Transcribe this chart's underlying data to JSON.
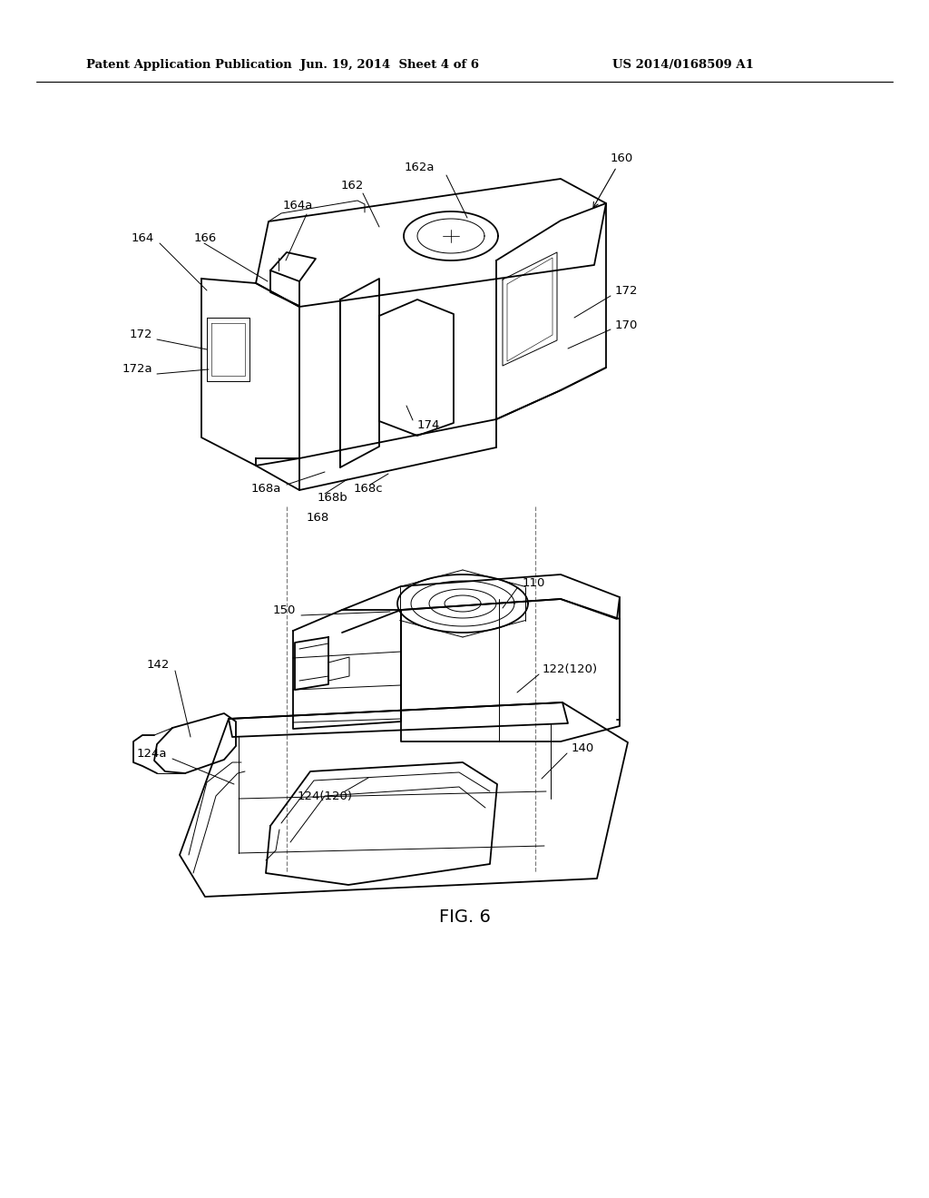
{
  "bg_color": "#ffffff",
  "line_color": "#000000",
  "header_left": "Patent Application Publication",
  "header_center": "Jun. 19, 2014  Sheet 4 of 6",
  "header_right": "US 2014/0168509 A1",
  "figure_label": "FIG. 6",
  "lw_main": 1.3,
  "lw_thin": 0.7,
  "lw_leader": 0.7,
  "label_fontsize": 9.5,
  "header_fontsize": 9.5,
  "fig_label_fontsize": 14
}
